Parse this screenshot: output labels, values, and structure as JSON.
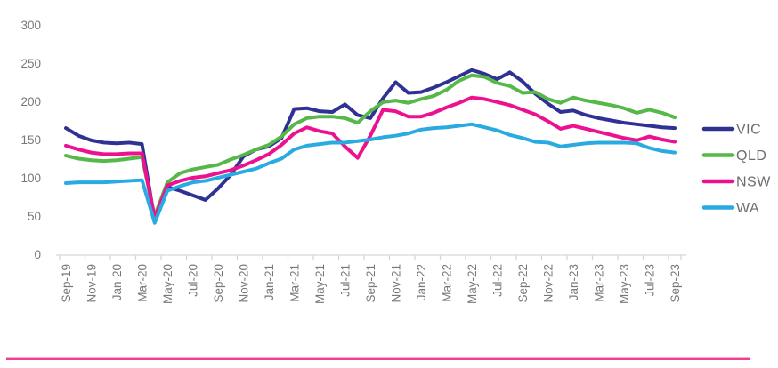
{
  "chart_data": {
    "type": "line",
    "title": "",
    "xlabel": "",
    "ylabel": "",
    "ylim": [
      0,
      300
    ],
    "yticks": [
      0,
      50,
      100,
      150,
      200,
      250,
      300
    ],
    "grid": false,
    "legend_position": "right",
    "x_label_rotation": -90,
    "x_tick_labels_shown_every": "2 months",
    "x_labels_visible": [
      "Sep-19",
      "Nov-19",
      "Jan-20",
      "Mar-20",
      "May-20",
      "Jul-20",
      "Sep-20",
      "Nov-20",
      "Jan-21",
      "Mar-21",
      "May-21",
      "Jul-21",
      "Sep-21",
      "Nov-21",
      "Jan-22",
      "Mar-22",
      "May-22",
      "Jul-22",
      "Sep-22",
      "Nov-22",
      "Jan-23",
      "Mar-23",
      "May-23",
      "Jul-23",
      "Sep-23"
    ],
    "x": [
      "Sep-19",
      "Oct-19",
      "Nov-19",
      "Dec-19",
      "Jan-20",
      "Feb-20",
      "Mar-20",
      "Apr-20",
      "May-20",
      "Jun-20",
      "Jul-20",
      "Aug-20",
      "Sep-20",
      "Oct-20",
      "Nov-20",
      "Dec-20",
      "Jan-21",
      "Feb-21",
      "Mar-21",
      "Apr-21",
      "May-21",
      "Jun-21",
      "Jul-21",
      "Aug-21",
      "Sep-21",
      "Oct-21",
      "Nov-21",
      "Dec-21",
      "Jan-22",
      "Feb-22",
      "Mar-22",
      "Apr-22",
      "May-22",
      "Jun-22",
      "Jul-22",
      "Aug-22",
      "Sep-22",
      "Oct-22",
      "Nov-22",
      "Dec-22",
      "Jan-23",
      "Feb-23",
      "Mar-23",
      "Apr-23",
      "May-23",
      "Jun-23",
      "Jul-23",
      "Aug-23",
      "Sep-23"
    ],
    "series": [
      {
        "name": "VIC",
        "color": "#2f3193",
        "values": [
          165,
          155,
          149,
          146,
          145,
          146,
          144,
          45,
          88,
          83,
          77,
          71,
          86,
          104,
          128,
          137,
          141,
          152,
          190,
          191,
          187,
          186,
          196,
          182,
          178,
          204,
          225,
          211,
          212,
          218,
          225,
          233,
          241,
          236,
          229,
          238,
          226,
          210,
          197,
          186,
          188,
          182,
          178,
          175,
          172,
          170,
          168,
          166,
          165
        ]
      },
      {
        "name": "QLD",
        "color": "#56b848",
        "values": [
          129,
          125,
          123,
          122,
          123,
          125,
          127,
          50,
          94,
          106,
          111,
          114,
          117,
          124,
          130,
          137,
          143,
          154,
          170,
          178,
          180,
          180,
          178,
          172,
          187,
          199,
          201,
          198,
          203,
          207,
          215,
          227,
          234,
          232,
          224,
          220,
          211,
          212,
          203,
          198,
          205,
          201,
          198,
          195,
          191,
          185,
          189,
          185,
          179
        ]
      },
      {
        "name": "NSW",
        "color": "#ec118f",
        "values": [
          142,
          137,
          133,
          131,
          131,
          132,
          132,
          47,
          90,
          96,
          100,
          102,
          106,
          110,
          116,
          123,
          131,
          143,
          158,
          166,
          161,
          158,
          141,
          126,
          155,
          189,
          187,
          180,
          180,
          185,
          192,
          198,
          205,
          203,
          199,
          195,
          189,
          183,
          174,
          164,
          168,
          164,
          160,
          156,
          152,
          149,
          154,
          150,
          147
        ]
      },
      {
        "name": "WA",
        "color": "#29abe2",
        "values": [
          93,
          94,
          94,
          94,
          95,
          96,
          97,
          41,
          83,
          89,
          94,
          96,
          100,
          104,
          108,
          112,
          119,
          125,
          137,
          142,
          144,
          146,
          146,
          148,
          150,
          153,
          155,
          158,
          163,
          165,
          166,
          168,
          170,
          166,
          162,
          156,
          152,
          147,
          146,
          141,
          143,
          145,
          146,
          146,
          146,
          145,
          139,
          135,
          133
        ]
      }
    ]
  },
  "axis": {
    "tick_text_color": "#77787b",
    "axis_line_color": "#d6d6d6"
  },
  "legend": {
    "text_color": "#6b6c6f",
    "items": [
      {
        "label": "VIC",
        "color": "#2f3193"
      },
      {
        "label": "QLD",
        "color": "#56b848"
      },
      {
        "label": "NSW",
        "color": "#ec118f"
      },
      {
        "label": "WA",
        "color": "#29abe2"
      }
    ]
  },
  "footer": {
    "divider_color": "#f03e92"
  }
}
